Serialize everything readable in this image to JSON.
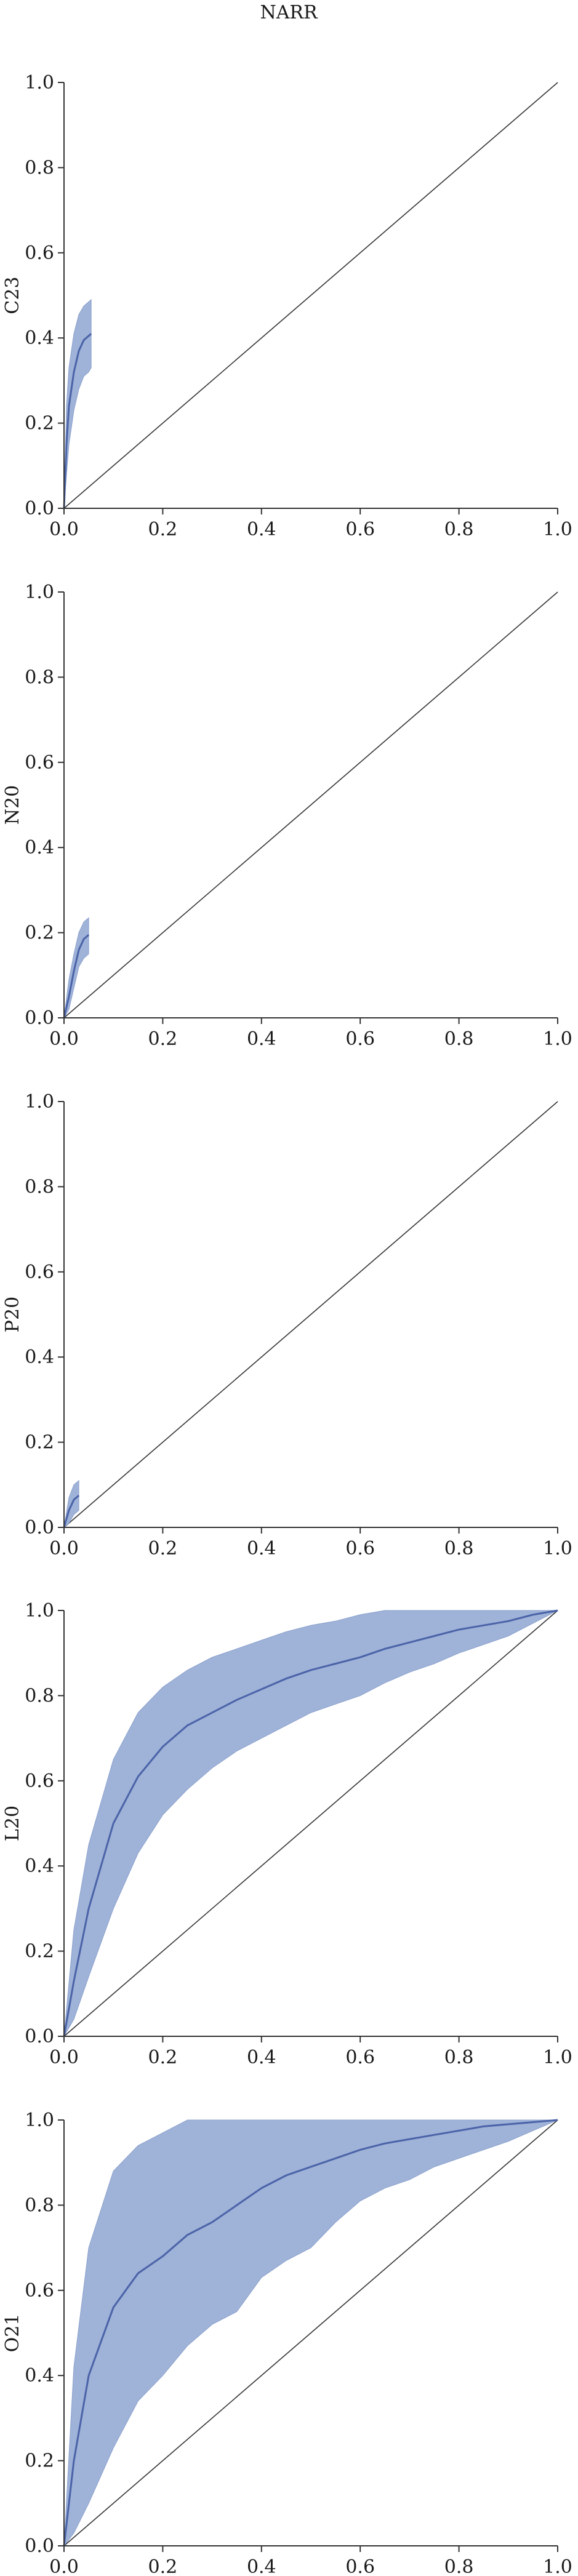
{
  "figure": {
    "title": "NARR"
  },
  "colors": {
    "band": "#9fb2d8",
    "line": "#4a63a8",
    "diagonal": "#333333"
  },
  "chart_data": [
    {
      "type": "line",
      "ylabel": "C23",
      "xlim": [
        0,
        1
      ],
      "ylim": [
        0,
        1
      ],
      "xticks": [
        "0.0",
        "0.2",
        "0.4",
        "0.6",
        "0.8",
        "1.0"
      ],
      "yticks": [
        "0.0",
        "0.2",
        "0.4",
        "0.6",
        "0.8",
        "1.0"
      ],
      "series": [
        {
          "x": [
            0,
            0.005,
            0.01,
            0.02,
            0.03,
            0.04,
            0.05,
            0.055
          ],
          "y": [
            0,
            0.15,
            0.24,
            0.32,
            0.37,
            0.395,
            0.405,
            0.41
          ],
          "lower": [
            0,
            0.08,
            0.15,
            0.23,
            0.28,
            0.31,
            0.32,
            0.33
          ],
          "upper": [
            0,
            0.24,
            0.33,
            0.41,
            0.455,
            0.475,
            0.485,
            0.49
          ]
        }
      ],
      "reference_line": [
        [
          0,
          0
        ],
        [
          1,
          1
        ]
      ]
    },
    {
      "type": "line",
      "ylabel": "N20",
      "xlim": [
        0,
        1
      ],
      "ylim": [
        0,
        1
      ],
      "xticks": [
        "0.0",
        "0.2",
        "0.4",
        "0.6",
        "0.8",
        "1.0"
      ],
      "yticks": [
        "0.0",
        "0.2",
        "0.4",
        "0.6",
        "0.8",
        "1.0"
      ],
      "series": [
        {
          "x": [
            0,
            0.01,
            0.02,
            0.03,
            0.04,
            0.05
          ],
          "y": [
            0,
            0.05,
            0.11,
            0.16,
            0.185,
            0.195
          ],
          "lower": [
            0,
            0.02,
            0.07,
            0.12,
            0.14,
            0.15
          ],
          "upper": [
            0,
            0.09,
            0.15,
            0.2,
            0.225,
            0.235
          ]
        }
      ],
      "reference_line": [
        [
          0,
          0
        ],
        [
          1,
          1
        ]
      ]
    },
    {
      "type": "line",
      "ylabel": "P20",
      "xlim": [
        0,
        1
      ],
      "ylim": [
        0,
        1
      ],
      "xticks": [
        "0.0",
        "0.2",
        "0.4",
        "0.6",
        "0.8",
        "1.0"
      ],
      "yticks": [
        "0.0",
        "0.2",
        "0.4",
        "0.6",
        "0.8",
        "1.0"
      ],
      "series": [
        {
          "x": [
            0,
            0.01,
            0.02,
            0.03
          ],
          "y": [
            0,
            0.04,
            0.065,
            0.075
          ],
          "lower": [
            0,
            0.01,
            0.03,
            0.04
          ],
          "upper": [
            0,
            0.07,
            0.1,
            0.11
          ]
        }
      ],
      "reference_line": [
        [
          0,
          0
        ],
        [
          1,
          1
        ]
      ]
    },
    {
      "type": "line",
      "ylabel": "L20",
      "xlim": [
        0,
        1
      ],
      "ylim": [
        0,
        1
      ],
      "xticks": [
        "0.0",
        "0.2",
        "0.4",
        "0.6",
        "0.8",
        "1.0"
      ],
      "yticks": [
        "0.0",
        "0.2",
        "0.4",
        "0.6",
        "0.8",
        "1.0"
      ],
      "series": [
        {
          "x": [
            0,
            0.02,
            0.05,
            0.1,
            0.15,
            0.2,
            0.25,
            0.3,
            0.35,
            0.4,
            0.45,
            0.5,
            0.55,
            0.6,
            0.65,
            0.7,
            0.75,
            0.8,
            0.85,
            0.9,
            0.95,
            1.0
          ],
          "y": [
            0,
            0.13,
            0.3,
            0.5,
            0.61,
            0.68,
            0.73,
            0.76,
            0.79,
            0.815,
            0.84,
            0.86,
            0.875,
            0.89,
            0.91,
            0.925,
            0.94,
            0.955,
            0.965,
            0.975,
            0.99,
            1.0
          ],
          "lower": [
            0,
            0.04,
            0.14,
            0.3,
            0.43,
            0.52,
            0.58,
            0.63,
            0.67,
            0.7,
            0.73,
            0.76,
            0.78,
            0.8,
            0.83,
            0.855,
            0.875,
            0.9,
            0.92,
            0.94,
            0.97,
            1.0
          ],
          "upper": [
            0,
            0.25,
            0.45,
            0.65,
            0.76,
            0.82,
            0.86,
            0.89,
            0.91,
            0.93,
            0.95,
            0.965,
            0.975,
            0.99,
            1.0,
            1.0,
            1.0,
            1.0,
            1.0,
            1.0,
            1.0,
            1.0
          ]
        }
      ],
      "reference_line": [
        [
          0,
          0
        ],
        [
          1,
          1
        ]
      ]
    },
    {
      "type": "line",
      "ylabel": "O21",
      "xlim": [
        0,
        1
      ],
      "ylim": [
        0,
        1
      ],
      "xticks": [
        "0.0",
        "0.2",
        "0.4",
        "0.6",
        "0.8",
        "1.0"
      ],
      "yticks": [
        "0.0",
        "0.2",
        "0.4",
        "0.6",
        "0.8",
        "1.0"
      ],
      "series": [
        {
          "x": [
            0,
            0.02,
            0.05,
            0.1,
            0.15,
            0.2,
            0.25,
            0.3,
            0.35,
            0.4,
            0.45,
            0.5,
            0.55,
            0.6,
            0.65,
            0.7,
            0.75,
            0.8,
            0.85,
            0.9,
            0.95,
            1.0
          ],
          "y": [
            0,
            0.2,
            0.4,
            0.56,
            0.64,
            0.68,
            0.73,
            0.76,
            0.8,
            0.84,
            0.87,
            0.89,
            0.91,
            0.93,
            0.945,
            0.955,
            0.965,
            0.975,
            0.985,
            0.99,
            0.995,
            1.0
          ],
          "lower": [
            0,
            0.03,
            0.1,
            0.23,
            0.34,
            0.4,
            0.47,
            0.52,
            0.55,
            0.63,
            0.67,
            0.7,
            0.76,
            0.81,
            0.84,
            0.86,
            0.89,
            0.91,
            0.93,
            0.95,
            0.975,
            1.0
          ],
          "upper": [
            0,
            0.42,
            0.7,
            0.88,
            0.94,
            0.97,
            1.0,
            1.0,
            1.0,
            1.0,
            1.0,
            1.0,
            1.0,
            1.0,
            1.0,
            1.0,
            1.0,
            1.0,
            1.0,
            1.0,
            1.0,
            1.0
          ]
        }
      ],
      "reference_line": [
        [
          0,
          0
        ],
        [
          1,
          1
        ]
      ]
    }
  ]
}
